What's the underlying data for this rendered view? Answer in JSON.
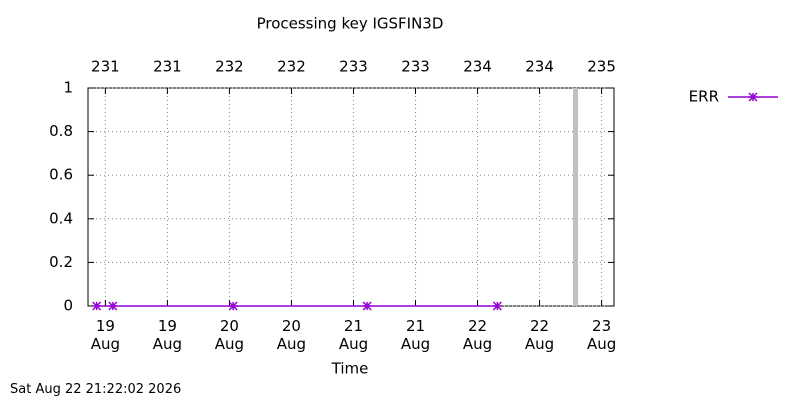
{
  "chart_data": {
    "type": "line",
    "title": "Processing key IGSFIN3D",
    "x_label": "Time",
    "x": [
      18.93,
      19.06,
      20.03,
      21.11,
      22.16
    ],
    "series": [
      {
        "name": "ERR",
        "color": "#9400d3",
        "values": [
          0,
          0,
          0,
          0,
          0
        ]
      }
    ],
    "xlim": [
      18.86,
      23.1
    ],
    "xticks": [
      {
        "value": 19,
        "label": "19 Aug"
      },
      {
        "value": 19.5,
        "label": "19 Aug"
      },
      {
        "value": 20,
        "label": "20 Aug"
      },
      {
        "value": 20.5,
        "label": "20 Aug"
      },
      {
        "value": 21,
        "label": "21 Aug"
      },
      {
        "value": 21.5,
        "label": "21 Aug"
      },
      {
        "value": 22,
        "label": "22 Aug"
      },
      {
        "value": 22.5,
        "label": "22 Aug"
      },
      {
        "value": 23,
        "label": "23 Aug"
      }
    ],
    "x2ticks": [
      {
        "value": 19,
        "label": "231"
      },
      {
        "value": 19.5,
        "label": "231"
      },
      {
        "value": 20,
        "label": "232"
      },
      {
        "value": 20.5,
        "label": "232"
      },
      {
        "value": 21,
        "label": "233"
      },
      {
        "value": 21.5,
        "label": "233"
      },
      {
        "value": 22,
        "label": "234"
      },
      {
        "value": 22.5,
        "label": "234"
      },
      {
        "value": 23,
        "label": "235"
      }
    ],
    "ylim": [
      0,
      1
    ],
    "yticks": [
      0,
      0.2,
      0.4,
      0.6,
      0.8,
      1
    ],
    "marker_x": 22.79,
    "marker_color": "#c0c0c0",
    "grid": true,
    "legend": "top-right"
  },
  "footer": "Sat Aug 22 21:22:02 2026"
}
